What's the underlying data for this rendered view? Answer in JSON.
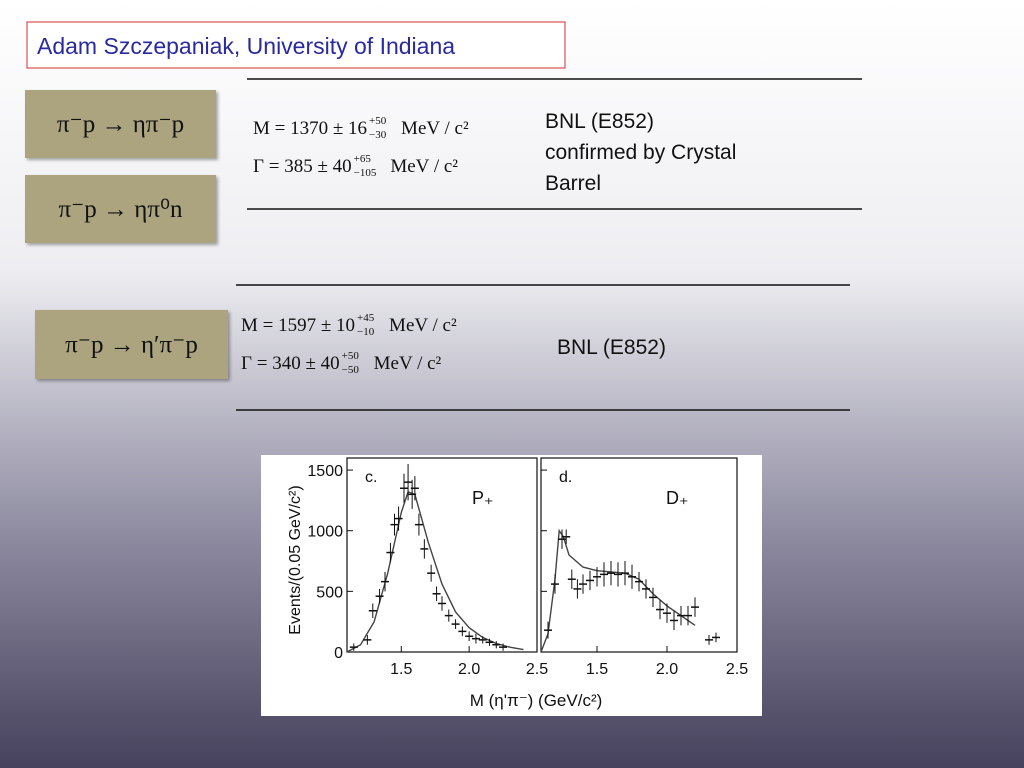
{
  "header": {
    "title": "Adam Szczepaniak, University of Indiana"
  },
  "reactions": [
    "π⁻p → ηπ⁻p",
    "π⁻p → ηπ⁰n",
    "π⁻p → η′π⁻p"
  ],
  "results": [
    {
      "formulas": [
        {
          "lhs": "M = 1370 ± 16",
          "plus": "+50",
          "minus": "−30",
          "unit": "MeV / c²"
        },
        {
          "lhs": "Γ = 385 ± 40",
          "plus": "+65",
          "minus": "−105",
          "unit": "MeV / c²"
        }
      ],
      "note": [
        "BNL (E852)",
        "confirmed by Crystal",
        "Barrel"
      ]
    },
    {
      "formulas": [
        {
          "lhs": "M = 1597 ± 10",
          "plus": "+45",
          "minus": "−10",
          "unit": "MeV / c²"
        },
        {
          "lhs": "Γ = 340 ± 40",
          "plus": "+50",
          "minus": "−50",
          "unit": "MeV / c²"
        }
      ],
      "note": [
        "BNL (E852)"
      ]
    }
  ],
  "figure": {
    "ylabel": "Events/(0.05 GeV/c²)",
    "xlabel": "M (η'π⁻) (GeV/c²)",
    "ylim": [
      0,
      1550
    ],
    "yticks": [
      0,
      500,
      1000,
      1500
    ],
    "xlim": [
      1.1,
      2.5
    ],
    "xticks": [
      1.5,
      {
        "value": 2,
        "label": "2.0"
      },
      2.5
    ],
    "panels": [
      {
        "label": "c.",
        "wave": "P₊",
        "x": [
          1.15,
          1.25,
          1.29,
          1.34,
          1.38,
          1.42,
          1.45,
          1.48,
          1.52,
          1.55,
          1.58,
          1.6,
          1.63,
          1.67,
          1.72,
          1.76,
          1.8,
          1.85,
          1.9,
          1.95,
          2.0,
          2.05,
          2.1,
          2.15,
          2.2,
          2.25
        ],
        "y": [
          40,
          100,
          340,
          460,
          580,
          820,
          1050,
          1100,
          1350,
          1400,
          1300,
          1350,
          1050,
          850,
          650,
          480,
          400,
          300,
          230,
          170,
          130,
          110,
          100,
          80,
          60,
          40
        ],
        "err": [
          30,
          40,
          60,
          60,
          80,
          80,
          90,
          100,
          120,
          150,
          120,
          100,
          90,
          80,
          70,
          60,
          60,
          50,
          40,
          40,
          40,
          40,
          30,
          30,
          30,
          30
        ],
        "curve_x": [
          1.1,
          1.2,
          1.3,
          1.4,
          1.5,
          1.55,
          1.6,
          1.65,
          1.7,
          1.8,
          1.9,
          2.0,
          2.1,
          2.2,
          2.3,
          2.4
        ],
        "curve_y": [
          0,
          60,
          250,
          650,
          1150,
          1320,
          1300,
          1100,
          900,
          560,
          330,
          200,
          120,
          70,
          40,
          20
        ]
      },
      {
        "label": "d.",
        "wave": "D₊",
        "x": [
          1.15,
          1.2,
          1.25,
          1.28,
          1.32,
          1.36,
          1.4,
          1.45,
          1.5,
          1.55,
          1.6,
          1.65,
          1.7,
          1.75,
          1.8,
          1.85,
          1.9,
          1.95,
          2.0,
          2.05,
          2.1,
          2.15,
          2.2,
          2.3,
          2.35
        ],
        "y": [
          180,
          560,
          930,
          950,
          600,
          520,
          560,
          590,
          620,
          640,
          650,
          640,
          650,
          620,
          580,
          520,
          450,
          350,
          320,
          260,
          300,
          300,
          370,
          100,
          120
        ],
        "err": [
          70,
          80,
          80,
          60,
          80,
          80,
          80,
          80,
          80,
          100,
          100,
          100,
          100,
          100,
          80,
          80,
          80,
          80,
          80,
          80,
          80,
          80,
          80,
          40,
          40
        ],
        "curve_x": [
          1.1,
          1.15,
          1.2,
          1.23,
          1.26,
          1.3,
          1.4,
          1.5,
          1.6,
          1.7,
          1.8,
          1.9,
          2.0,
          2.1,
          2.2
        ],
        "curve_y": [
          0,
          150,
          600,
          1000,
          950,
          800,
          700,
          670,
          660,
          650,
          600,
          480,
          380,
          300,
          220
        ]
      }
    ]
  }
}
